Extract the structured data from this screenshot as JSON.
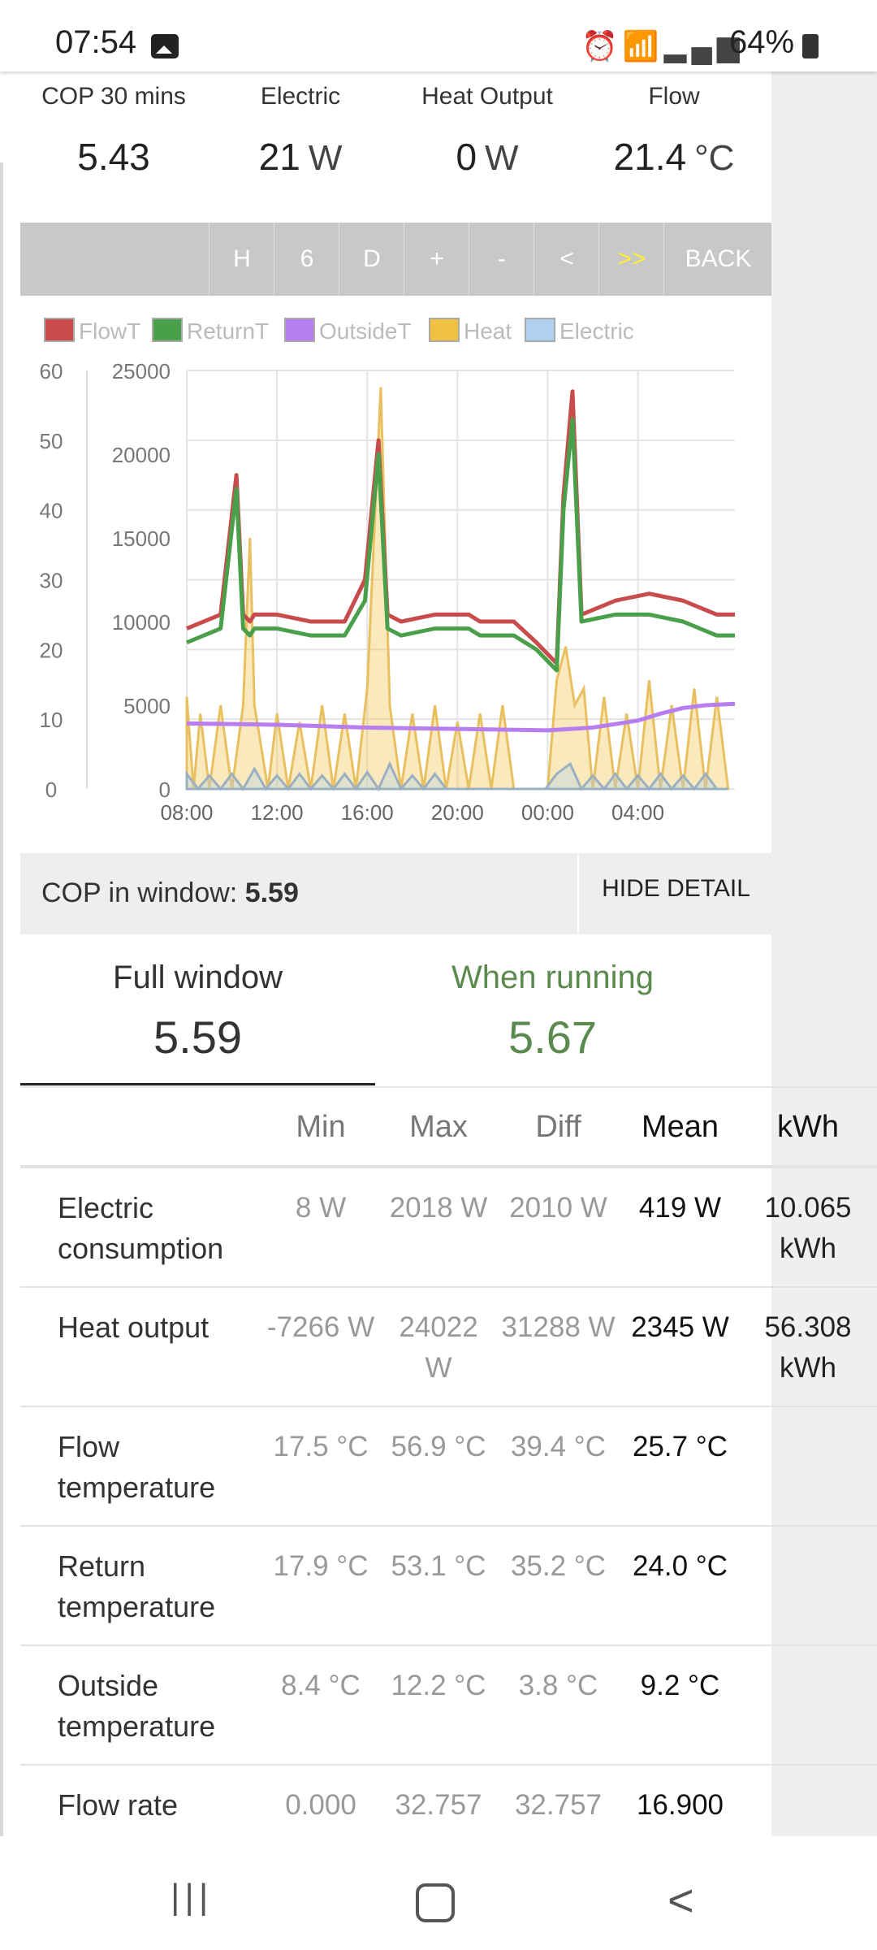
{
  "status_bar": {
    "time": "07:54",
    "battery": "64%",
    "icons": [
      "gallery-icon",
      "alarm-icon",
      "wifi-icon",
      "wifi-calling-icon",
      "signal-icon",
      "battery-icon"
    ]
  },
  "stats": [
    {
      "label": "COP 30 mins",
      "value": "5.43",
      "unit": ""
    },
    {
      "label": "Electric",
      "value": "21",
      "unit": "W"
    },
    {
      "label": "Heat Output",
      "value": "0",
      "unit": "W"
    },
    {
      "label": "Flow",
      "value": "21.4",
      "unit": "°C"
    }
  ],
  "toolbar": {
    "buttons": [
      "H",
      "6",
      "D",
      "+",
      "-",
      "<",
      ">>",
      "BACK"
    ],
    "highlight_color": "#ffee33"
  },
  "chart_data": {
    "type": "line",
    "legend": [
      {
        "name": "FlowT",
        "color": "#c94c4c"
      },
      {
        "name": "ReturnT",
        "color": "#4aa04a"
      },
      {
        "name": "OutsideT",
        "color": "#b77ef0"
      },
      {
        "name": "Heat",
        "color": "#f0c040"
      },
      {
        "name": "Electric",
        "color": "#b0d0f0"
      }
    ],
    "y_left": {
      "range": [
        0,
        60
      ],
      "ticks": [
        "0",
        "10",
        "20",
        "30",
        "40",
        "50",
        "60"
      ]
    },
    "y_right": {
      "range": [
        0,
        25000
      ],
      "ticks": [
        "0",
        "5000",
        "10000",
        "15000",
        "20000",
        "25000"
      ]
    },
    "x_ticks": [
      "08:00",
      "12:00",
      "16:00",
      "20:00",
      "00:00",
      "04:00"
    ],
    "x_range_hours": [
      8,
      32.3
    ],
    "grid": true,
    "series": [
      {
        "name": "FlowT",
        "axis": "left",
        "x": [
          8,
          9.5,
          10.2,
          10.5,
          10.8,
          11,
          12,
          13.5,
          15,
          15.9,
          16.5,
          16.9,
          17.5,
          19,
          20.5,
          21,
          22,
          22.5,
          23.5,
          24.4,
          24.7,
          25.1,
          25.5,
          27,
          28.5,
          30,
          31.5,
          32.3
        ],
        "y": [
          23,
          25,
          45,
          25,
          24,
          25,
          25,
          24,
          24,
          30,
          50,
          25,
          24,
          25,
          25,
          24,
          24,
          24,
          21,
          18,
          42,
          57,
          25,
          27,
          28,
          27,
          25,
          25
        ]
      },
      {
        "name": "ReturnT",
        "axis": "left",
        "x": [
          8,
          9.5,
          10.2,
          10.5,
          10.8,
          11,
          12,
          13.5,
          15,
          15.9,
          16.5,
          16.9,
          17.5,
          19,
          20.5,
          21,
          22,
          22.5,
          23.5,
          24.4,
          24.7,
          25.1,
          25.5,
          27,
          28.5,
          30,
          31.5,
          32.3
        ],
        "y": [
          21,
          23,
          43,
          23,
          22,
          23,
          23,
          22,
          22,
          27,
          48,
          23,
          22,
          23,
          23,
          22,
          22,
          22,
          20,
          17,
          40,
          53,
          24,
          25,
          25,
          24,
          22,
          22
        ]
      },
      {
        "name": "OutsideT",
        "axis": "left",
        "x": [
          8,
          10,
          12,
          16,
          20,
          24,
          26,
          28,
          29,
          30,
          31,
          32.3
        ],
        "y": [
          9.4,
          9.3,
          9.2,
          8.8,
          8.6,
          8.4,
          8.8,
          9.8,
          10.8,
          11.6,
          12.0,
          12.2
        ]
      },
      {
        "name": "Heat",
        "axis": "right",
        "x": [
          8,
          8.3,
          8.6,
          9,
          9.5,
          10,
          10.5,
          10.8,
          11,
          11.6,
          12,
          12.5,
          13,
          13.5,
          14,
          14.5,
          15,
          15.5,
          16,
          16.3,
          16.6,
          17,
          17.5,
          18,
          18.5,
          19,
          19.5,
          20,
          20.5,
          21,
          21.5,
          22,
          22.5,
          23,
          24,
          24.4,
          24.8,
          25.2,
          25.6,
          26,
          26.5,
          27,
          27.5,
          28,
          28.5,
          29,
          29.5,
          30,
          30.5,
          31,
          31.5,
          32
        ],
        "y": [
          5500,
          0,
          4500,
          0,
          5000,
          0,
          5000,
          15000,
          5000,
          0,
          4500,
          0,
          4000,
          0,
          5000,
          0,
          4500,
          0,
          6000,
          15000,
          24000,
          5000,
          0,
          4500,
          0,
          5000,
          0,
          4000,
          0,
          4500,
          0,
          5000,
          0,
          0,
          0,
          6500,
          8500,
          5000,
          6000,
          0,
          5500,
          0,
          4500,
          0,
          6500,
          0,
          5000,
          0,
          6000,
          0,
          5500,
          0
        ]
      },
      {
        "name": "Electric",
        "axis": "right",
        "x": [
          8,
          8.5,
          9,
          9.5,
          10,
          10.5,
          11,
          11.5,
          12,
          12.5,
          13,
          13.5,
          14,
          14.5,
          15,
          15.5,
          16,
          16.5,
          17,
          17.5,
          18,
          18.5,
          19,
          19.5,
          20,
          22,
          23.9,
          24.4,
          25,
          25.5,
          26,
          26.5,
          27,
          27.5,
          28,
          28.5,
          29,
          29.5,
          30,
          30.5,
          31,
          31.5,
          32
        ],
        "y": [
          900,
          0,
          800,
          0,
          900,
          0,
          1200,
          0,
          800,
          0,
          900,
          0,
          800,
          0,
          900,
          0,
          1000,
          0,
          1500,
          0,
          800,
          0,
          900,
          0,
          0,
          0,
          0,
          900,
          1500,
          0,
          800,
          0,
          900,
          0,
          800,
          0,
          900,
          0,
          800,
          0,
          900,
          0,
          0
        ]
      }
    ]
  },
  "cop_window": {
    "label": "COP in window: ",
    "value": "5.59",
    "hide_label": "HIDE DETAIL"
  },
  "tabs": [
    {
      "label": "Full window",
      "value": "5.59"
    },
    {
      "label": "When running",
      "value": "5.67"
    }
  ],
  "table": {
    "headers": [
      "",
      "Min",
      "Max",
      "Diff",
      "Mean",
      "kWh"
    ],
    "rows": [
      {
        "name": "Electric consumption",
        "min": "8 W",
        "max": "2018 W",
        "diff": "2010 W",
        "mean": "419 W",
        "kwh": "10.065 kWh"
      },
      {
        "name": "Heat output",
        "min": "-7266 W",
        "max": "24022 W",
        "diff": "31288 W",
        "mean": "2345 W",
        "kwh": "56.308 kWh"
      },
      {
        "name": "Flow temperature",
        "min": "17.5 °C",
        "max": "56.9 °C",
        "diff": "39.4 °C",
        "mean": "25.7 °C",
        "kwh": ""
      },
      {
        "name": "Return temperature",
        "min": "17.9 °C",
        "max": "53.1 °C",
        "diff": "35.2 °C",
        "mean": "24.0 °C",
        "kwh": ""
      },
      {
        "name": "Outside temperature",
        "min": "8.4 °C",
        "max": "12.2 °C",
        "diff": "3.8 °C",
        "mean": "9.2 °C",
        "kwh": ""
      },
      {
        "name": "Flow rate",
        "min": "0.000",
        "max": "32.757",
        "diff": "32.757",
        "mean": "16.900",
        "kwh": ""
      }
    ]
  },
  "nav": {
    "recent": "|||",
    "back": "<"
  }
}
